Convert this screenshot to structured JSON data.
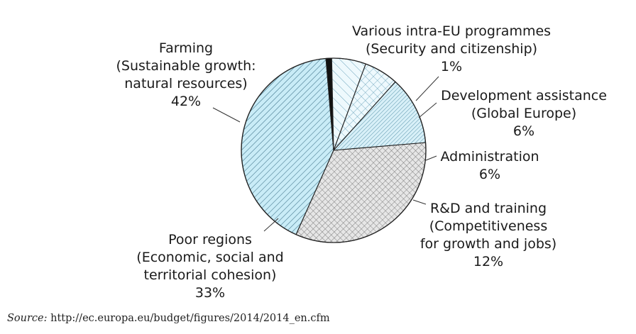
{
  "chart_data": {
    "type": "pie",
    "slices": [
      {
        "lines": [
          "Farming",
          "(Sustainable growth:",
          "natural resources)",
          "42%"
        ],
        "value": 42,
        "fill": "#c9ecf7",
        "pattern": "diag-down"
      },
      {
        "lines": [
          "Various intra-EU programmes",
          "(Security and citizenship)",
          "1%"
        ],
        "value": 1,
        "fill": "#111111",
        "pattern": "solid"
      },
      {
        "lines": [
          "Development assistance",
          "(Global Europe)",
          "6%"
        ],
        "value": 6,
        "fill": "#e8f6fb",
        "pattern": "diag-up-sparse"
      },
      {
        "lines": [
          "Administration",
          "6%"
        ],
        "value": 6,
        "fill": "#e8f6fb",
        "pattern": "crosshatch-sparse"
      },
      {
        "lines": [
          "R&D and training",
          "(Competitiveness",
          "for growth and jobs)",
          "12%"
        ],
        "value": 12,
        "fill": "#d8f0f8",
        "pattern": "diag-down-dense"
      },
      {
        "lines": [
          "Poor regions",
          "(Economic, social and",
          "territorial cohesion)",
          "33%"
        ],
        "value": 33,
        "fill": "#dcdcdc",
        "pattern": "crosshatch"
      }
    ]
  },
  "source": {
    "prefix": "Source:",
    "url": "http://ec.europa.eu/budget/figures/2014/2014_en.cfm"
  }
}
